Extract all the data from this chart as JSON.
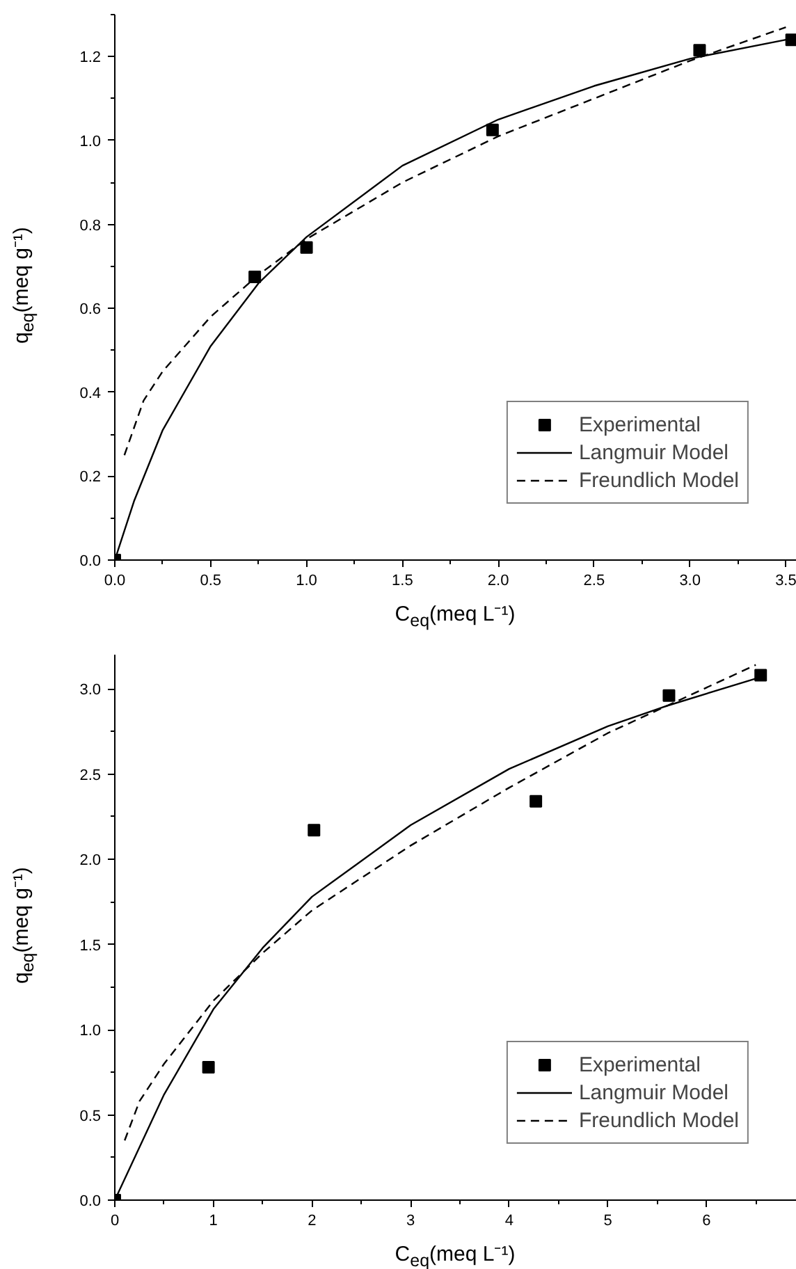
{
  "chart_data": [
    {
      "type": "scatter",
      "xlabel": "C$_{eq}$(meq L⁻¹)",
      "ylabel": "q$_{eq}$(meq g⁻¹)",
      "xlim": [
        0,
        3.6
      ],
      "ylim": [
        0,
        1.3
      ],
      "xticks": [
        {
          "value": 0,
          "label": "0.0"
        },
        0.5,
        {
          "value": 1,
          "label": "1.0"
        },
        1.5,
        {
          "value": 2,
          "label": "2.0"
        },
        2.5,
        {
          "value": 3,
          "label": "3.0"
        },
        3.5
      ],
      "yticks": [
        {
          "value": 0,
          "label": "0.0"
        },
        0.2,
        0.4,
        0.6,
        0.8,
        {
          "value": 1,
          "label": "1.0"
        },
        1.2
      ],
      "grid": false,
      "legend": "bottom right",
      "series": [
        {
          "name": "Experimental",
          "marker": "square",
          "color": "#000000",
          "x": [
            0,
            0.73,
            1.0,
            1.97,
            3.05,
            3.53
          ],
          "values": [
            0,
            0.675,
            0.745,
            1.025,
            1.215,
            1.24
          ]
        },
        {
          "name": "Langmuir Model",
          "type": "line",
          "line_style": "solid",
          "color": "#000000",
          "x": [
            0,
            0.1,
            0.25,
            0.5,
            0.75,
            1.0,
            1.5,
            2.0,
            2.5,
            3.0,
            3.5
          ],
          "values": [
            0,
            0.14,
            0.31,
            0.51,
            0.66,
            0.77,
            0.94,
            1.05,
            1.13,
            1.195,
            1.24
          ]
        },
        {
          "name": "Freundlich Model",
          "type": "line",
          "line_style": "dashed",
          "color": "#000000",
          "x": [
            0.05,
            0.15,
            0.25,
            0.5,
            0.75,
            1.0,
            1.5,
            2.0,
            2.5,
            3.0,
            3.5
          ],
          "values": [
            0.25,
            0.38,
            0.45,
            0.58,
            0.68,
            0.765,
            0.9,
            1.01,
            1.1,
            1.19,
            1.27
          ]
        }
      ]
    },
    {
      "type": "scatter",
      "xlabel": "C$_{eq}$(meq L⁻¹)",
      "ylabel": "q$_{eq}$(meq g⁻¹)",
      "xlim": [
        0,
        7
      ],
      "ylim": [
        0,
        3.2
      ],
      "xticks": [
        0,
        1,
        2,
        3,
        4,
        5,
        6
      ],
      "yticks": [
        {
          "value": 0,
          "label": "0.0"
        },
        0.5,
        {
          "value": 1,
          "label": "1.0"
        },
        1.5,
        {
          "value": 2,
          "label": "2.0"
        },
        2.5,
        {
          "value": 3,
          "label": "3.0"
        }
      ],
      "grid": false,
      "legend": "bottom right",
      "series": [
        {
          "name": "Experimental",
          "marker": "square",
          "color": "#000000",
          "x": [
            0,
            0.95,
            2.02,
            4.27,
            5.62,
            6.55
          ],
          "values": [
            0,
            0.78,
            2.17,
            2.34,
            2.96,
            3.08
          ]
        },
        {
          "name": "Langmuir Model",
          "type": "line",
          "line_style": "solid",
          "color": "#000000",
          "x": [
            0,
            0.5,
            1.0,
            1.5,
            2.0,
            3.0,
            4.0,
            5.0,
            5.6,
            6.5
          ],
          "values": [
            0,
            0.62,
            1.12,
            1.48,
            1.78,
            2.2,
            2.53,
            2.78,
            2.9,
            3.06
          ]
        },
        {
          "name": "Freundlich Model",
          "type": "line",
          "line_style": "dashed",
          "color": "#000000",
          "x": [
            0.1,
            0.25,
            0.5,
            1.0,
            1.5,
            2.0,
            3.0,
            4.0,
            5.0,
            5.6,
            6.5
          ],
          "values": [
            0.35,
            0.58,
            0.8,
            1.17,
            1.45,
            1.7,
            2.08,
            2.42,
            2.74,
            2.9,
            3.14
          ]
        }
      ]
    }
  ]
}
